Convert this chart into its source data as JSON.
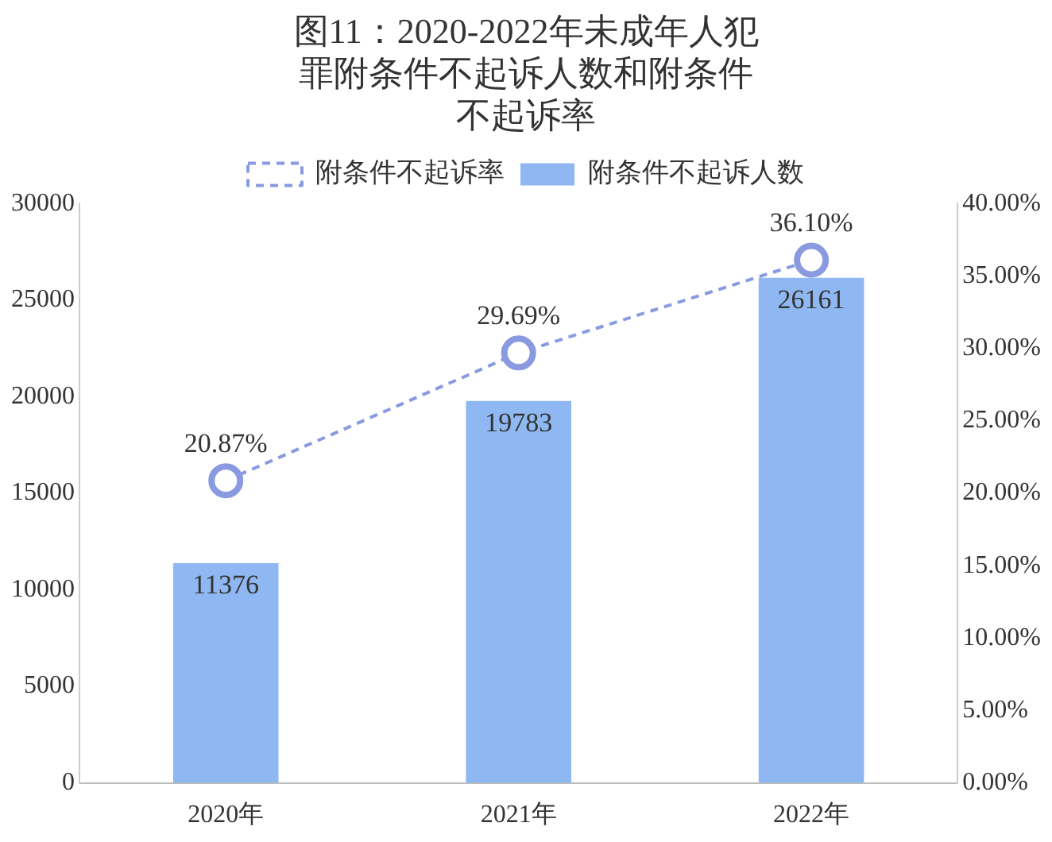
{
  "chart_data": {
    "type": "bar",
    "title": "图11：2020-2022年未成年人犯罪附条件不起诉人数和附条件不起诉率",
    "categories": [
      "2020年",
      "2021年",
      "2022年"
    ],
    "series": [
      {
        "name": "附条件不起诉人数",
        "color": "#8fb8f2",
        "values": [
          11376,
          19783,
          26161
        ],
        "value_labels": [
          "11376",
          "19783",
          "26161"
        ]
      },
      {
        "name": "附条件不起诉率",
        "type": "line",
        "axis": "y2",
        "color": "#8a9ae0",
        "line_style": "dashed",
        "marker": "circle",
        "values": [
          20.87,
          29.69,
          36.1
        ],
        "value_labels": [
          "20.87%",
          "29.69%",
          "36.10%"
        ]
      }
    ],
    "ylim": [
      0,
      30000
    ],
    "yticks": [
      0,
      5000,
      10000,
      15000,
      20000,
      25000,
      30000
    ],
    "y2lim": [
      0,
      40
    ],
    "y2ticks": [
      {
        "value": 0,
        "label": "0.00%"
      },
      {
        "value": 5,
        "label": "5.00%"
      },
      {
        "value": 10,
        "label": "10.00%"
      },
      {
        "value": 15,
        "label": "15.00%"
      },
      {
        "value": 20,
        "label": "20.00%"
      },
      {
        "value": 25,
        "label": "25.00%"
      },
      {
        "value": 30,
        "label": "30.00%"
      },
      {
        "value": 35,
        "label": "35.00%"
      },
      {
        "value": 40,
        "label": "40.00%"
      }
    ],
    "legend": "top",
    "grid": false
  }
}
